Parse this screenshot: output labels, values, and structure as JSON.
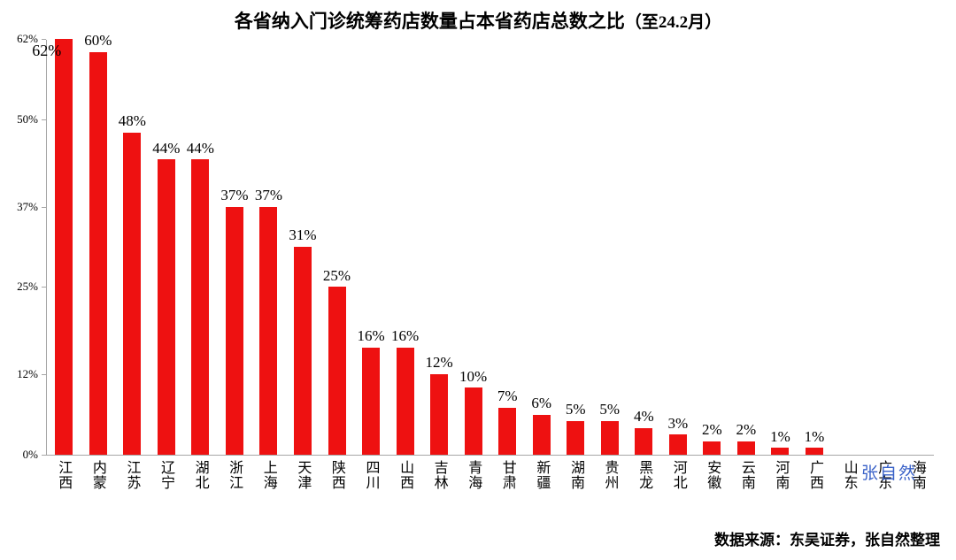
{
  "title": {
    "main": "各省纳入门诊统筹药店数量占本省药店总数之比",
    "suffix": "（至24.2月）"
  },
  "watermark": {
    "text": "张自然"
  },
  "footer": {
    "source": "数据来源：东吴证券，张自然整理"
  },
  "chart_data": {
    "type": "bar",
    "title": "各省纳入门诊统筹药店数量占本省药店总数之比（至24.2月）",
    "xlabel": "",
    "ylabel": "",
    "categories": [
      "江西",
      "内蒙",
      "江苏",
      "辽宁",
      "湖北",
      "浙江",
      "上海",
      "天津",
      "陕西",
      "四川",
      "山西",
      "吉林",
      "青海",
      "甘肃",
      "新疆",
      "湖南",
      "贵州",
      "黑龙",
      "河北",
      "安徽",
      "云南",
      "河南",
      "广西",
      "山东",
      "广东",
      "海南"
    ],
    "values": [
      62,
      60,
      48,
      44,
      44,
      37,
      37,
      31,
      25,
      16,
      16,
      12,
      10,
      7,
      6,
      5,
      5,
      4,
      3,
      2,
      2,
      1,
      1,
      0,
      0,
      0
    ],
    "labels": [
      "62%",
      "60%",
      "48%",
      "44%",
      "44%",
      "37%",
      "37%",
      "31%",
      "25%",
      "16%",
      "16%",
      "12%",
      "10%",
      "7%",
      "6%",
      "5%",
      "5%",
      "4%",
      "3%",
      "2%",
      "2%",
      "1%",
      "1%",
      "",
      "",
      ""
    ],
    "y_ticks": [
      "0%",
      "12%",
      "25%",
      "37%",
      "50%",
      "62%"
    ],
    "y_tick_values": [
      0,
      12,
      25,
      37,
      50,
      62
    ],
    "ylim": [
      0,
      62
    ],
    "grid": false,
    "legend": "none",
    "bar_color": "#ee1111"
  }
}
